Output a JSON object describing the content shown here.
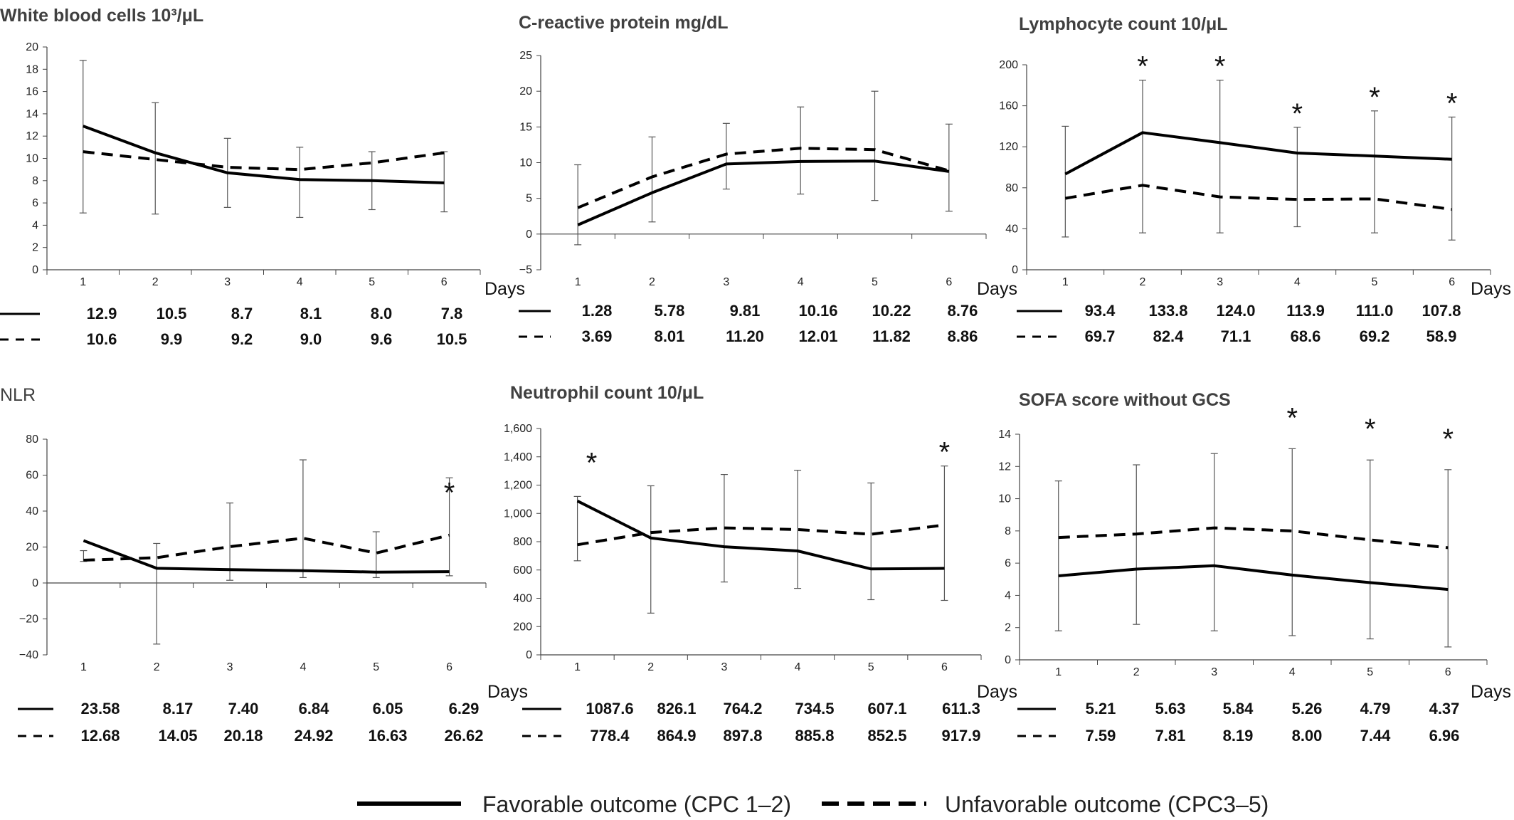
{
  "legend": {
    "favorable": "Favorable outcome (CPC 1–2)",
    "unfavorable": "Unfavorable outcome (CPC3–5)"
  },
  "chart_data": [
    {
      "type": "line",
      "title": "White blood cells 10³/μL",
      "xlabel": "Days",
      "x": [
        1,
        2,
        3,
        4,
        5,
        6
      ],
      "ylim": [
        0,
        20
      ],
      "yticks": [
        "0",
        "2",
        "4",
        "6",
        "8",
        "10",
        "12",
        "14",
        "16",
        "18",
        "20"
      ],
      "ytick_values": [
        0,
        2,
        4,
        6,
        8,
        10,
        12,
        14,
        16,
        18,
        20
      ],
      "series": [
        {
          "style": "solid",
          "values": [
            12.9,
            10.5,
            8.7,
            8.1,
            8.0,
            7.8
          ],
          "labels": [
            "12.9",
            "10.5",
            "8.7",
            "8.1",
            "8.0",
            "7.8"
          ]
        },
        {
          "style": "dashed",
          "values": [
            10.6,
            9.9,
            9.2,
            9.0,
            9.6,
            10.5
          ],
          "labels": [
            "10.6",
            "9.9",
            "9.2",
            "9.0",
            "9.6",
            "10.5"
          ]
        }
      ],
      "error_bars": [
        [
          5.1,
          18.8
        ],
        [
          5.0,
          15.0
        ],
        [
          5.6,
          11.8
        ],
        [
          4.7,
          11.0
        ],
        [
          5.4,
          10.6
        ],
        [
          5.2,
          10.6
        ]
      ],
      "significant": []
    },
    {
      "type": "line",
      "title": "C-reactive  protein mg/dL",
      "xlabel": "Days",
      "x": [
        1,
        2,
        3,
        4,
        5,
        6
      ],
      "ylim": [
        -5,
        25
      ],
      "yticks": [
        "−5",
        "0",
        "5",
        "10",
        "15",
        "20",
        "25"
      ],
      "ytick_values": [
        -5,
        0,
        5,
        10,
        15,
        20,
        25
      ],
      "series": [
        {
          "style": "solid",
          "values": [
            1.28,
            5.78,
            9.81,
            10.16,
            10.22,
            8.76
          ],
          "labels": [
            "1.28",
            "5.78",
            "9.81",
            "10.16",
            "10.22",
            "8.76"
          ]
        },
        {
          "style": "dashed",
          "values": [
            3.69,
            8.01,
            11.2,
            12.01,
            11.82,
            8.86
          ],
          "labels": [
            "3.69",
            "8.01",
            "11.20",
            "12.01",
            "11.82",
            "8.86"
          ]
        }
      ],
      "error_bars": [
        [
          -1.5,
          9.7
        ],
        [
          1.7,
          13.6
        ],
        [
          6.3,
          15.5
        ],
        [
          5.6,
          17.8
        ],
        [
          4.7,
          20.0
        ],
        [
          3.2,
          15.4
        ]
      ],
      "significant": []
    },
    {
      "type": "line",
      "title": "Lymphocyte count 10/μL",
      "xlabel": "Days",
      "x": [
        1,
        2,
        3,
        4,
        5,
        6
      ],
      "ylim": [
        0,
        200
      ],
      "yticks": [
        "0",
        "40",
        "80",
        "120",
        "160",
        "200"
      ],
      "ytick_values": [
        0,
        40,
        80,
        120,
        160,
        200
      ],
      "series": [
        {
          "style": "solid",
          "values": [
            93.4,
            133.8,
            124.0,
            113.9,
            111.0,
            107.8
          ],
          "labels": [
            "93.4",
            "133.8",
            "124.0",
            "113.9",
            "111.0",
            "107.8"
          ]
        },
        {
          "style": "dashed",
          "values": [
            69.7,
            82.4,
            71.1,
            68.6,
            69.2,
            58.9
          ],
          "labels": [
            "69.7",
            "82.4",
            "71.1",
            "68.6",
            "69.2",
            "58.9"
          ]
        }
      ],
      "error_bars": [
        [
          32,
          140
        ],
        [
          36,
          185
        ],
        [
          36,
          185
        ],
        [
          42,
          139
        ],
        [
          36,
          155
        ],
        [
          29,
          149
        ]
      ],
      "significant": [
        2,
        3,
        4,
        5,
        6
      ]
    },
    {
      "type": "line",
      "title": "NLR",
      "xlabel": "Days",
      "x": [
        1,
        2,
        3,
        4,
        5,
        6
      ],
      "ylim": [
        -40,
        80
      ],
      "yticks": [
        "−40",
        "−20",
        "0",
        "20",
        "40",
        "60",
        "80"
      ],
      "ytick_values": [
        -40,
        -20,
        0,
        20,
        40,
        60,
        80
      ],
      "series": [
        {
          "style": "solid",
          "values": [
            23.58,
            8.17,
            7.4,
            6.84,
            6.05,
            6.29
          ],
          "labels": [
            "23.58",
            "8.17",
            "7.40",
            "6.84",
            "6.05",
            "6.29"
          ]
        },
        {
          "style": "dashed",
          "values": [
            12.68,
            14.05,
            20.18,
            24.92,
            16.63,
            26.62
          ],
          "labels": [
            "12.68",
            "14.05",
            "20.18",
            "24.92",
            "16.63",
            "26.62"
          ]
        }
      ],
      "error_bars": [
        [
          12,
          18
        ],
        [
          -34,
          22
        ],
        [
          1.5,
          44.5
        ],
        [
          3,
          68.5
        ],
        [
          3,
          28.5
        ],
        [
          4,
          58.5
        ]
      ],
      "significant": [
        6
      ]
    },
    {
      "type": "line",
      "title": "Neutrophil count 10/μL",
      "xlabel": "Days",
      "x": [
        1,
        2,
        3,
        4,
        5,
        6
      ],
      "ylim": [
        0,
        1600
      ],
      "yticks": [
        "0",
        "200",
        "400",
        "600",
        "800",
        "1,000",
        "1,200",
        "1,400",
        "1,600"
      ],
      "ytick_values": [
        0,
        200,
        400,
        600,
        800,
        1000,
        1200,
        1400,
        1600
      ],
      "series": [
        {
          "style": "solid",
          "values": [
            1087.6,
            826.1,
            764.2,
            734.5,
            607.1,
            611.3
          ],
          "labels": [
            "1087.6",
            "826.1",
            "764.2",
            "734.5",
            "607.1",
            "611.3"
          ]
        },
        {
          "style": "dashed",
          "values": [
            778.4,
            864.9,
            897.8,
            885.8,
            852.5,
            917.9
          ],
          "labels": [
            "778.4",
            "864.9",
            "897.8",
            "885.8",
            "852.5",
            "917.9"
          ]
        }
      ],
      "error_bars": [
        [
          665,
          1120
        ],
        [
          295,
          1195
        ],
        [
          515,
          1275
        ],
        [
          470,
          1305
        ],
        [
          390,
          1215
        ],
        [
          385,
          1335
        ]
      ],
      "significant": [
        1,
        6
      ]
    },
    {
      "type": "line",
      "title": "SOFA score without GCS",
      "xlabel": "Days",
      "x": [
        1,
        2,
        3,
        4,
        5,
        6
      ],
      "ylim": [
        0,
        14
      ],
      "yticks": [
        "0",
        "2",
        "4",
        "6",
        "8",
        "10",
        "12",
        "14"
      ],
      "ytick_values": [
        0,
        2,
        4,
        6,
        8,
        10,
        12,
        14
      ],
      "series": [
        {
          "style": "solid",
          "values": [
            5.21,
            5.63,
            5.84,
            5.26,
            4.79,
            4.37
          ],
          "labels": [
            "5.21",
            "5.63",
            "5.84",
            "5.26",
            "4.79",
            "4.37"
          ]
        },
        {
          "style": "dashed",
          "values": [
            7.59,
            7.81,
            8.19,
            8.0,
            7.44,
            6.96
          ],
          "labels": [
            "7.59",
            "7.81",
            "8.19",
            "8.00",
            "7.44",
            "6.96"
          ]
        }
      ],
      "error_bars": [
        [
          1.8,
          11.1
        ],
        [
          2.2,
          12.1
        ],
        [
          1.8,
          12.8
        ],
        [
          1.5,
          13.1
        ],
        [
          1.3,
          12.4
        ],
        [
          0.8,
          11.8
        ]
      ],
      "significant": [
        4,
        5,
        6
      ]
    }
  ]
}
